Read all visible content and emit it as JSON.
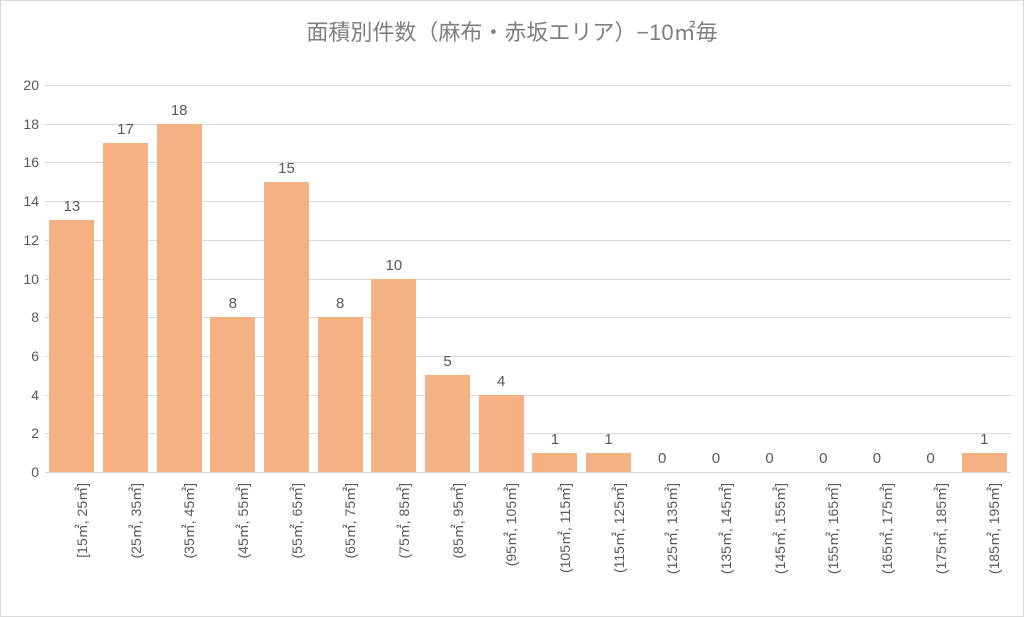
{
  "chart": {
    "type": "bar",
    "title": "面積別件数（麻布・赤坂エリア）−10㎡毎",
    "title_fontsize": 22,
    "title_color": "#7f7f7f",
    "background_color": "#ffffff",
    "border_color": "#d9d9d9",
    "grid_color": "#d9d9d9",
    "axis_line_color": "#bfbfbf",
    "label_color": "#595959",
    "bar_color": "#f4b183",
    "bar_width": 0.84,
    "ylim": [
      0,
      20
    ],
    "ytick_step": 2,
    "yticks": [
      0,
      2,
      4,
      6,
      8,
      10,
      12,
      14,
      16,
      18,
      20
    ],
    "categories": [
      "[15㎡, 25㎡]",
      "(25㎡, 35㎡]",
      "(35㎡, 45㎡]",
      "(45㎡, 55㎡]",
      "(55㎡, 65㎡]",
      "(65㎡, 75㎡]",
      "(75㎡, 85㎡]",
      "(85㎡, 95㎡]",
      "(95㎡, 105㎡]",
      "(105㎡, 115㎡]",
      "(115㎡, 125㎡]",
      "(125㎡, 135㎡]",
      "(135㎡, 145㎡]",
      "(145㎡, 155㎡]",
      "(155㎡, 165㎡]",
      "(165㎡, 175㎡]",
      "(175㎡, 185㎡]",
      "(185㎡, 195㎡]"
    ],
    "values": [
      13,
      17,
      18,
      8,
      15,
      8,
      10,
      5,
      4,
      1,
      1,
      0,
      0,
      0,
      0,
      0,
      0,
      1
    ],
    "xtick_rotation_deg": 90,
    "xtick_fontsize": 14,
    "ytick_fontsize": 14,
    "value_label_fontsize": 15
  }
}
